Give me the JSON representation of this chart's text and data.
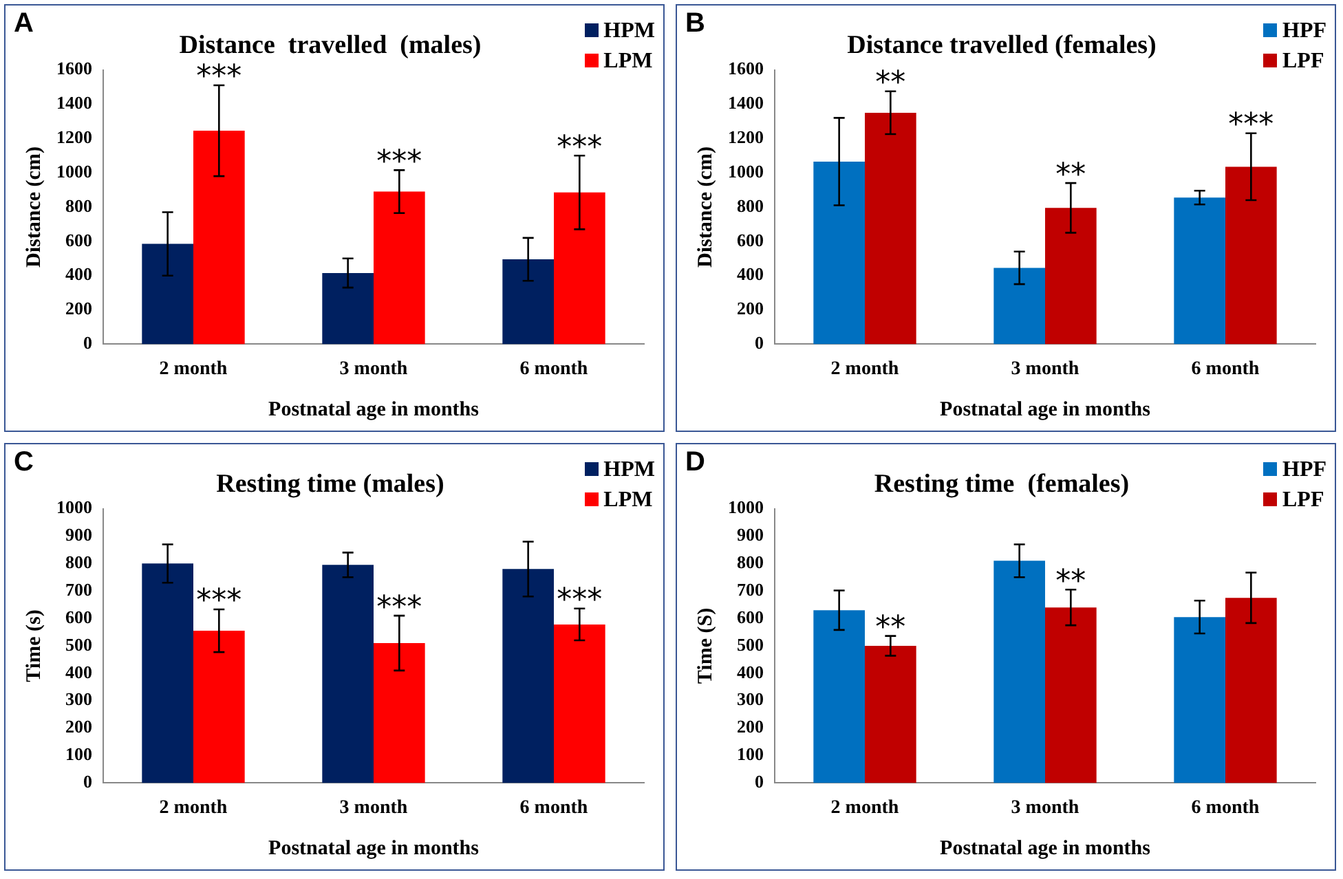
{
  "chart_data": [
    {
      "type": "bar",
      "title": "Distance  travelled  (males)",
      "xlabel": "Postnatal age in months",
      "ylabel": "Distance (cm)",
      "categories": [
        "2 month",
        "3 month",
        "6 month"
      ],
      "series": [
        {
          "name": "HPM",
          "color": "#002060",
          "values": [
            585,
            415,
            495
          ],
          "errors": [
            185,
            85,
            125
          ]
        },
        {
          "name": "LPM",
          "color": "#ff0000",
          "values": [
            1245,
            890,
            885
          ],
          "errors": [
            265,
            125,
            215
          ]
        }
      ],
      "ylim": [
        0,
        1600
      ],
      "yticks": [
        0,
        200,
        400,
        600,
        800,
        1000,
        1200,
        1400,
        1600
      ],
      "grid": false,
      "legend": "top right",
      "annotations": [
        "A",
        {
          "text": "***",
          "x": "2 month",
          "y": 1245
        },
        {
          "text": "***",
          "x": "3 month",
          "y": 890
        },
        {
          "text": "***",
          "x": "6 month",
          "y": 885
        }
      ]
    },
    {
      "type": "bar",
      "title": "Distance travelled (females)",
      "xlabel": "Postnatal age in months",
      "ylabel": "Distance (cm)",
      "categories": [
        "2 month",
        "3 month",
        "6 month"
      ],
      "series": [
        {
          "name": "HPF",
          "color": "#0070c0",
          "values": [
            1065,
            445,
            855
          ],
          "errors": [
            255,
            95,
            40
          ]
        },
        {
          "name": "LPF",
          "color": "#c00000",
          "values": [
            1350,
            795,
            1035
          ],
          "errors": [
            125,
            145,
            195
          ]
        }
      ],
      "ylim": [
        0,
        1600
      ],
      "yticks": [
        0,
        200,
        400,
        600,
        800,
        1000,
        1200,
        1400,
        1600
      ],
      "grid": false,
      "legend": "top right",
      "annotations": [
        "B",
        {
          "text": "**",
          "x": "2 month",
          "y": 1350
        },
        {
          "text": "**",
          "x": "3 month",
          "y": 795
        },
        {
          "text": "***",
          "x": "6 month",
          "y": 1035
        }
      ]
    },
    {
      "type": "bar",
      "title": "Resting time (males)",
      "xlabel": "Postnatal age in months",
      "ylabel": "Time (s)",
      "categories": [
        "2 month",
        "3 month",
        "6 month"
      ],
      "series": [
        {
          "name": "HPM",
          "color": "#002060",
          "values": [
            800,
            795,
            780
          ],
          "errors": [
            70,
            45,
            100
          ]
        },
        {
          "name": "LPM",
          "color": "#ff0000",
          "values": [
            555,
            510,
            578
          ],
          "errors": [
            78,
            100,
            58
          ]
        }
      ],
      "ylim": [
        0,
        1000
      ],
      "yticks": [
        0,
        100,
        200,
        300,
        400,
        500,
        600,
        700,
        800,
        900,
        1000
      ],
      "grid": false,
      "legend": "top right",
      "annotations": [
        "C",
        {
          "text": "***",
          "x": "2 month",
          "y": 555
        },
        {
          "text": "***",
          "x": "3 month",
          "y": 510
        },
        {
          "text": "***",
          "x": "6 month",
          "y": 578
        }
      ]
    },
    {
      "type": "bar",
      "title": "Resting time  (females)",
      "xlabel": "Postnatal age in months",
      "ylabel": "Time (S)",
      "categories": [
        "2 month",
        "3 month",
        "6 month"
      ],
      "series": [
        {
          "name": "HPF",
          "color": "#0070c0",
          "values": [
            630,
            810,
            605
          ],
          "errors": [
            72,
            60,
            60
          ]
        },
        {
          "name": "LPF",
          "color": "#c00000",
          "values": [
            500,
            640,
            675
          ],
          "errors": [
            36,
            65,
            92
          ]
        }
      ],
      "ylim": [
        0,
        1000
      ],
      "yticks": [
        0,
        100,
        200,
        300,
        400,
        500,
        600,
        700,
        800,
        900,
        1000
      ],
      "grid": false,
      "legend": "top right",
      "annotations": [
        "D",
        {
          "text": "**",
          "x": "2 month",
          "y": 500
        },
        {
          "text": "**",
          "x": "3 month",
          "y": 640
        }
      ]
    }
  ]
}
